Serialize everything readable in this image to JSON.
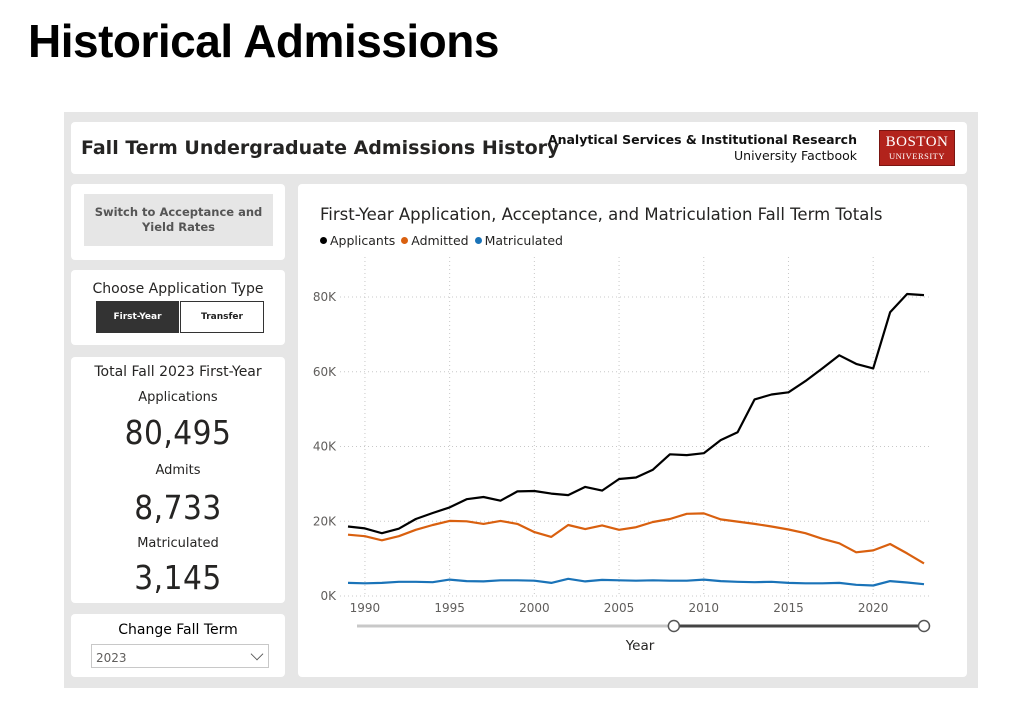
{
  "page_title": "Historical Admissions",
  "header": {
    "title": "Fall Term Undergraduate Admissions History",
    "org_line1": "Analytical Services & Institutional Research",
    "org_line2": "University Factbook",
    "logo_line1": "BOSTON",
    "logo_line2": "UNIVERSITY"
  },
  "switch_button": "Switch to Acceptance and Yield Rates",
  "application_type": {
    "label": "Choose Application Type",
    "options": [
      "First-Year",
      "Transfer"
    ],
    "selected": "First-Year"
  },
  "totals": {
    "heading": "Total Fall 2023 First-Year",
    "applications_label": "Applications",
    "applications": "80,495",
    "admits_label": "Admits",
    "admits": "8,733",
    "matriculated_label": "Matriculated",
    "matriculated": "3,145"
  },
  "fall_term": {
    "label": "Change Fall Term",
    "value": "2023"
  },
  "colors": {
    "Applicants": "#000000",
    "Admitted": "#d9600f",
    "Matriculated": "#1a73b8"
  },
  "chart_data": {
    "type": "line",
    "title": "First-Year Application, Acceptance, and Matriculation Fall Term Totals",
    "xlabel": "Year",
    "ylabel": "",
    "ylim": [
      0,
      80000
    ],
    "yticks": [
      "0K",
      "20K",
      "40K",
      "60K",
      "80K"
    ],
    "xticks": [
      "1990",
      "1995",
      "2000",
      "2005",
      "2010",
      "2015",
      "2020"
    ],
    "legend": "top-left",
    "grid": true,
    "x": [
      1989,
      1990,
      1991,
      1992,
      1993,
      1994,
      1995,
      1996,
      1997,
      1998,
      1999,
      2000,
      2001,
      2002,
      2003,
      2004,
      2005,
      2006,
      2007,
      2008,
      2009,
      2010,
      2011,
      2012,
      2013,
      2014,
      2015,
      2016,
      2017,
      2018,
      2019,
      2020,
      2021,
      2022,
      2023
    ],
    "series": [
      {
        "name": "Applicants",
        "values": [
          18600,
          18100,
          16800,
          18000,
          20600,
          22200,
          23700,
          25900,
          26500,
          25500,
          28000,
          28100,
          27400,
          27000,
          29200,
          28200,
          31300,
          31700,
          33800,
          37900,
          37700,
          38200,
          41700,
          43800,
          52600,
          53900,
          54500,
          57500,
          60900,
          64400,
          62100,
          60900,
          75900,
          80800,
          80495
        ]
      },
      {
        "name": "Admitted",
        "values": [
          16400,
          16000,
          14900,
          16000,
          17700,
          19000,
          20100,
          20000,
          19300,
          20100,
          19300,
          17100,
          15800,
          19000,
          17900,
          18900,
          17700,
          18400,
          19800,
          20600,
          22000,
          22100,
          20500,
          19900,
          19300,
          18600,
          17800,
          16800,
          15300,
          14100,
          11700,
          12200,
          13900,
          11400,
          8733
        ]
      },
      {
        "name": "Matriculated",
        "values": [
          3500,
          3400,
          3500,
          3800,
          3800,
          3700,
          4400,
          4000,
          3900,
          4200,
          4200,
          4100,
          3500,
          4600,
          3900,
          4300,
          4200,
          4100,
          4200,
          4100,
          4100,
          4400,
          4000,
          3800,
          3700,
          3800,
          3500,
          3400,
          3400,
          3500,
          3000,
          2800,
          4000,
          3600,
          3145
        ]
      }
    ],
    "slider": {
      "range": [
        2008,
        2023
      ]
    }
  }
}
